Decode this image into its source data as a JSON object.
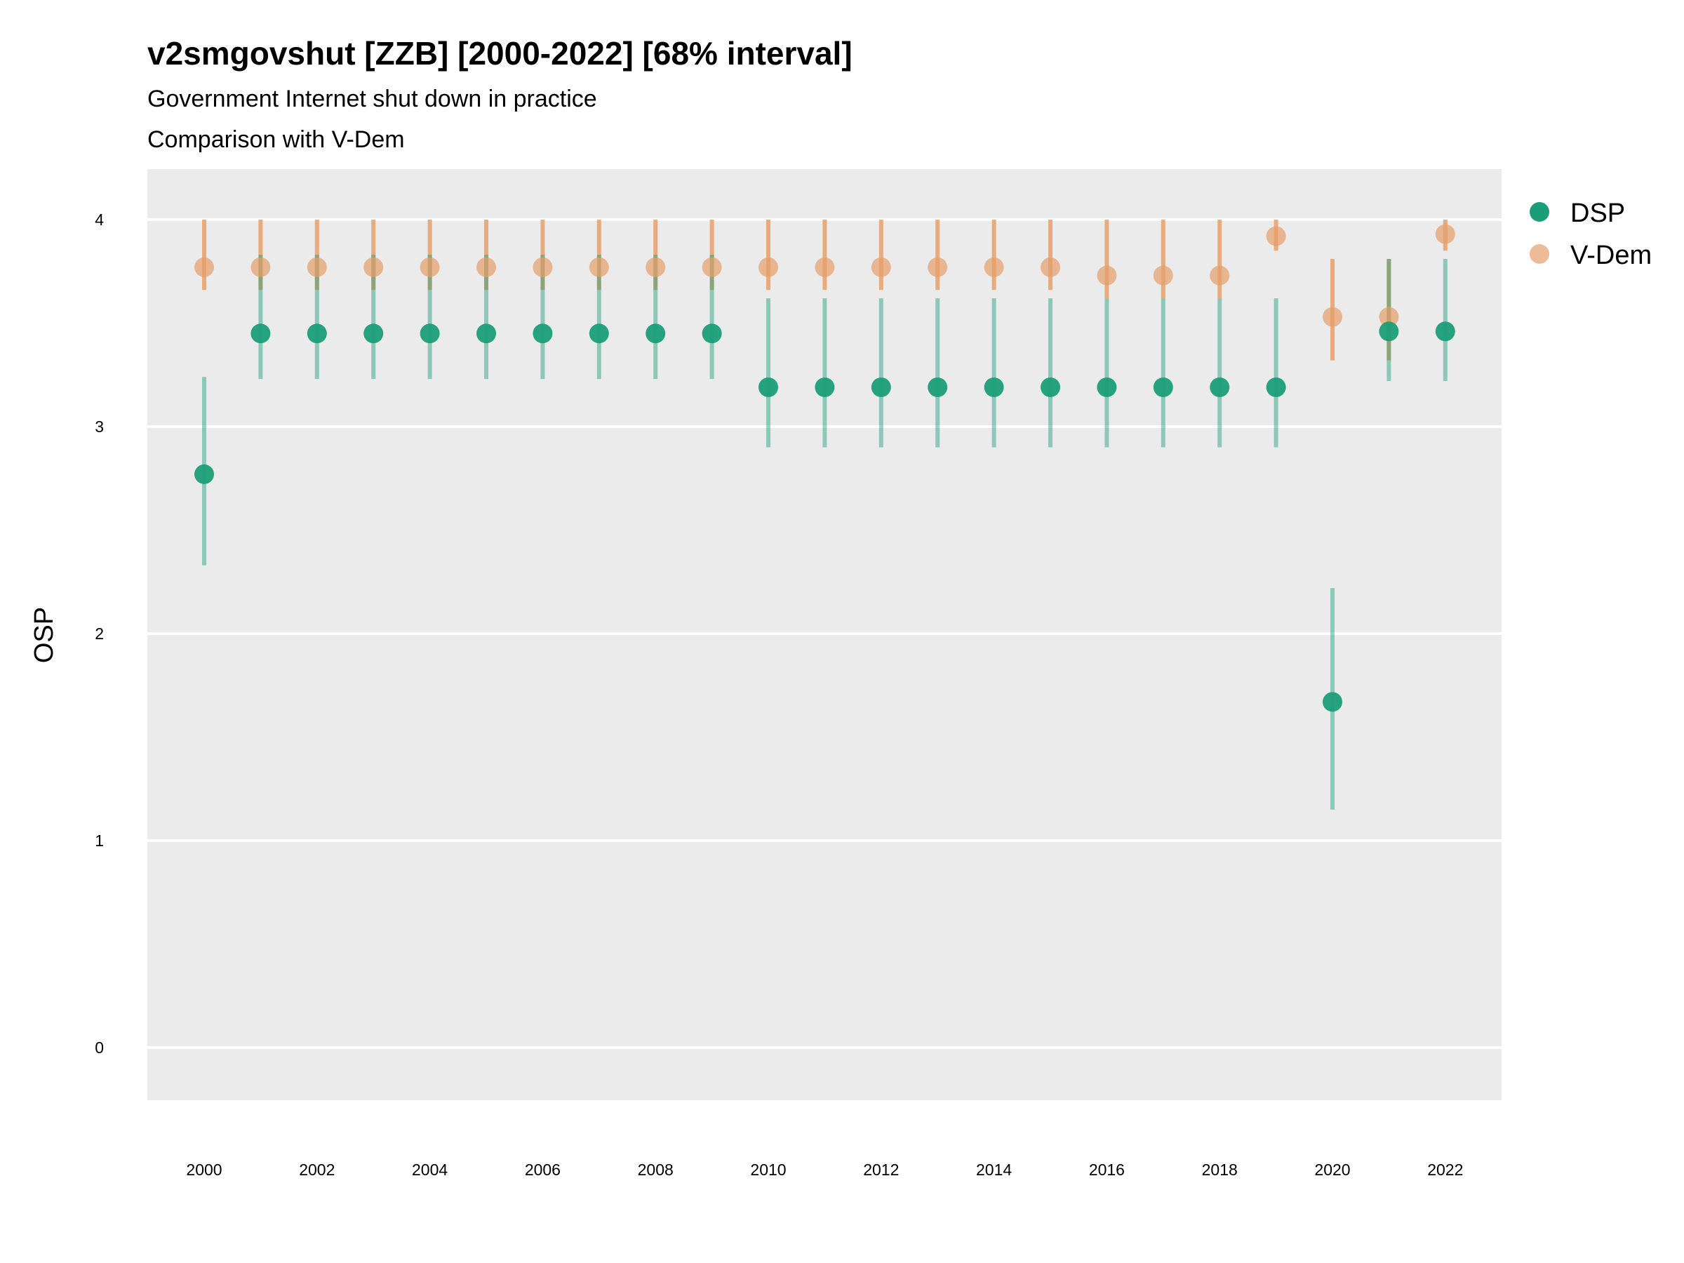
{
  "chart_data": {
    "type": "scatter",
    "title": "v2smgovshut [ZZB] [2000-2022] [68% interval]",
    "subtitle_lines": [
      "Government Internet shut down in practice",
      "Comparison with V-Dem"
    ],
    "xlabel": "",
    "ylabel": "OSP",
    "ylim": [
      -0.25,
      4.25
    ],
    "y_ticks": [
      0,
      1,
      2,
      3,
      4
    ],
    "x_ticks": [
      2000,
      2002,
      2004,
      2006,
      2008,
      2010,
      2012,
      2014,
      2016,
      2018,
      2020,
      2022
    ],
    "grid": true,
    "legend_position": "right",
    "colors": {
      "DSP": "#1b9e77",
      "V-Dem": "#e6a06a",
      "panel": "#ebebeb",
      "grid": "#ffffff"
    },
    "series": [
      {
        "name": "V-Dem",
        "x": [
          2000,
          2001,
          2002,
          2003,
          2004,
          2005,
          2006,
          2007,
          2008,
          2009,
          2010,
          2011,
          2012,
          2013,
          2014,
          2015,
          2016,
          2017,
          2018,
          2019,
          2020,
          2021,
          2022
        ],
        "y": [
          3.77,
          3.77,
          3.77,
          3.77,
          3.77,
          3.77,
          3.77,
          3.77,
          3.77,
          3.77,
          3.77,
          3.77,
          3.77,
          3.77,
          3.77,
          3.77,
          3.73,
          3.73,
          3.73,
          3.92,
          3.53,
          3.53,
          3.93
        ],
        "lower": [
          3.66,
          3.66,
          3.66,
          3.66,
          3.66,
          3.66,
          3.66,
          3.66,
          3.66,
          3.66,
          3.66,
          3.66,
          3.66,
          3.66,
          3.66,
          3.66,
          3.62,
          3.62,
          3.62,
          3.85,
          3.32,
          3.32,
          3.85
        ],
        "upper": [
          4.0,
          4.0,
          4.0,
          4.0,
          4.0,
          4.0,
          4.0,
          4.0,
          4.0,
          4.0,
          4.0,
          4.0,
          4.0,
          4.0,
          4.0,
          4.0,
          4.0,
          4.0,
          4.0,
          4.0,
          3.81,
          3.81,
          4.0
        ]
      },
      {
        "name": "DSP",
        "x": [
          2000,
          2001,
          2002,
          2003,
          2004,
          2005,
          2006,
          2007,
          2008,
          2009,
          2010,
          2011,
          2012,
          2013,
          2014,
          2015,
          2016,
          2017,
          2018,
          2019,
          2020,
          2021,
          2022
        ],
        "y": [
          2.77,
          3.45,
          3.45,
          3.45,
          3.45,
          3.45,
          3.45,
          3.45,
          3.45,
          3.45,
          3.19,
          3.19,
          3.19,
          3.19,
          3.19,
          3.19,
          3.19,
          3.19,
          3.19,
          3.19,
          1.67,
          3.46,
          3.46
        ],
        "lower": [
          2.33,
          3.23,
          3.23,
          3.23,
          3.23,
          3.23,
          3.23,
          3.23,
          3.23,
          3.23,
          2.9,
          2.9,
          2.9,
          2.9,
          2.9,
          2.9,
          2.9,
          2.9,
          2.9,
          2.9,
          1.15,
          3.22,
          3.22
        ],
        "upper": [
          3.24,
          3.83,
          3.83,
          3.83,
          3.83,
          3.83,
          3.83,
          3.83,
          3.83,
          3.83,
          3.62,
          3.62,
          3.62,
          3.62,
          3.62,
          3.62,
          3.62,
          3.62,
          3.62,
          3.62,
          2.22,
          3.81,
          3.81
        ]
      }
    ],
    "legend": [
      {
        "name": "DSP",
        "color": "#1b9e77"
      },
      {
        "name": "V-Dem",
        "color": "#e6a06a"
      }
    ]
  }
}
